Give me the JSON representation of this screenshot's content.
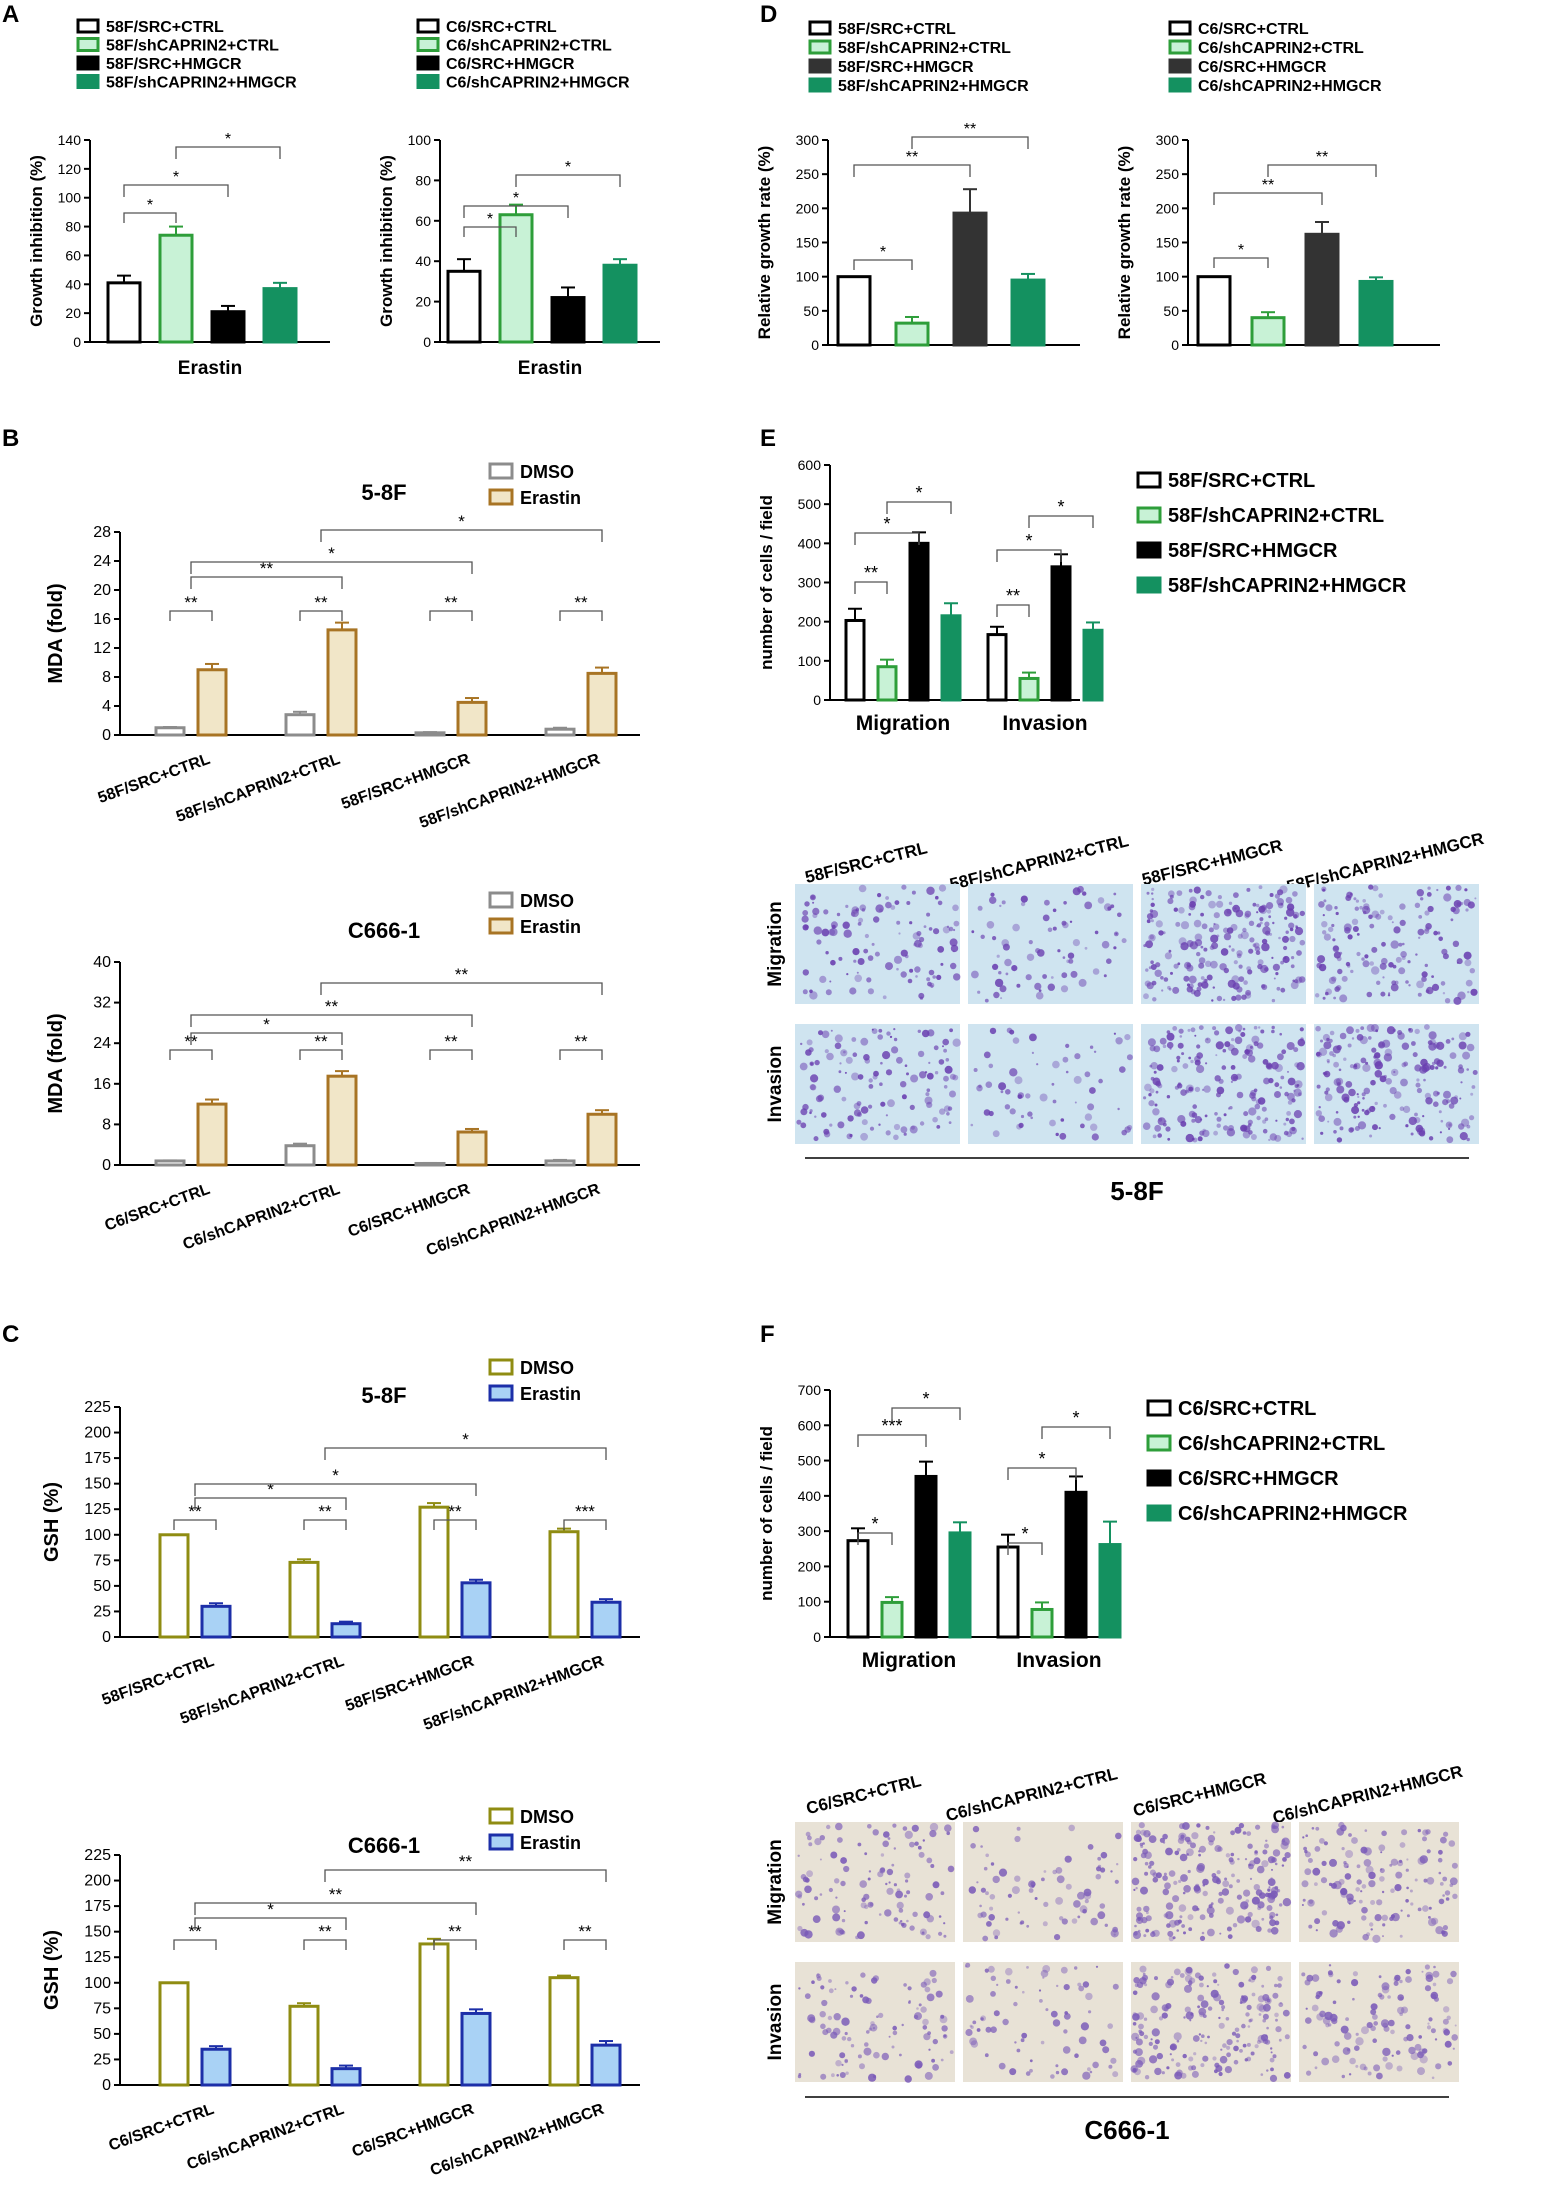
{
  "panel_letters": [
    "A",
    "B",
    "C",
    "D",
    "E",
    "F"
  ],
  "colors": {
    "white": "#ffffff",
    "light_green": "#c8f2d6",
    "green_edge": "#2e9e3a",
    "black": "#000000",
    "dark_grey": "#333333",
    "teal": "#149160",
    "grey_edge": "#8c8c8c",
    "tan_fill": "#f1e6c8",
    "tan_edge": "#a87424",
    "olive_edge": "#8f8c12",
    "blue_fill": "#a9d2f5",
    "blue_edge": "#1c2fa8"
  },
  "chart_data": [
    {
      "id": "A1",
      "type": "bar",
      "legend": [
        "58F/SRC+CTRL",
        "58F/shCAPRIN2+CTRL",
        "58F/SRC+HMGCR",
        "58F/shCAPRIN2+HMGCR"
      ],
      "categories": [
        "58F/SRC+CTRL",
        "58F/shCAPRIN2+CTRL",
        "58F/SRC+HMGCR",
        "58F/shCAPRIN2+HMGCR"
      ],
      "values": [
        41,
        74,
        21,
        37
      ],
      "errors": [
        5,
        6,
        4,
        4
      ],
      "xlabel": "Erastin",
      "ylabel": "Growth inhibition (%)",
      "ylim": [
        0,
        140
      ],
      "yticks": [
        "0",
        "20",
        "40",
        "60",
        "80",
        "100",
        "120",
        "140"
      ],
      "significance": [
        {
          "from": 0,
          "to": 1,
          "label": "*"
        },
        {
          "from": 0,
          "to": 2,
          "label": "*"
        },
        {
          "from": 1,
          "to": 3,
          "label": "*"
        }
      ]
    },
    {
      "id": "A2",
      "type": "bar",
      "legend": [
        "C6/SRC+CTRL",
        "C6/shCAPRIN2+CTRL",
        "C6/SRC+HMGCR",
        "C6/shCAPRIN2+HMGCR"
      ],
      "categories": [
        "C6/SRC+CTRL",
        "C6/shCAPRIN2+CTRL",
        "C6/SRC+HMGCR",
        "C6/shCAPRIN2+HMGCR"
      ],
      "values": [
        35,
        63,
        22,
        38
      ],
      "errors": [
        6,
        5,
        5,
        3
      ],
      "xlabel": "Erastin",
      "ylabel": "Growth inhibition (%)",
      "ylim": [
        0,
        100
      ],
      "yticks": [
        "0",
        "20",
        "40",
        "60",
        "80",
        "100"
      ],
      "significance": [
        {
          "from": 0,
          "to": 1,
          "label": "*"
        },
        {
          "from": 0,
          "to": 2,
          "label": "*"
        },
        {
          "from": 1,
          "to": 3,
          "label": "*"
        }
      ]
    },
    {
      "id": "B1",
      "type": "bar",
      "title": "5-8F",
      "legend": [
        "DMSO",
        "Erastin"
      ],
      "categories": [
        "58F/SRC+CTRL",
        "58F/shCAPRIN2+CTRL",
        "58F/SRC+HMGCR",
        "58F/shCAPRIN2+HMGCR"
      ],
      "series": [
        {
          "name": "DMSO",
          "values": [
            1.0,
            2.8,
            0.3,
            0.8
          ],
          "errors": [
            0.1,
            0.4,
            0.1,
            0.2
          ]
        },
        {
          "name": "Erastin",
          "values": [
            9.0,
            14.5,
            4.5,
            8.5
          ],
          "errors": [
            0.8,
            1.0,
            0.6,
            0.8
          ]
        }
      ],
      "ylabel": "MDA (fold)",
      "ylim": [
        0,
        28
      ],
      "yticks": [
        "0",
        "4",
        "8",
        "12",
        "16",
        "20",
        "24",
        "28"
      ],
      "significance": [
        {
          "pair": 0,
          "label": "**"
        },
        {
          "pair": 1,
          "label": "**"
        },
        {
          "pair": 2,
          "label": "**"
        },
        {
          "pair": 3,
          "label": "**"
        },
        {
          "from": 0,
          "to": 1,
          "label": "**"
        },
        {
          "from": 0,
          "to": 2,
          "label": "*"
        },
        {
          "from": 1,
          "to": 3,
          "label": "*"
        }
      ]
    },
    {
      "id": "B2",
      "type": "bar",
      "title": "C666-1",
      "legend": [
        "DMSO",
        "Erastin"
      ],
      "categories": [
        "C6/SRC+CTRL",
        "C6/shCAPRIN2+CTRL",
        "C6/SRC+HMGCR",
        "C6/shCAPRIN2+HMGCR"
      ],
      "series": [
        {
          "name": "DMSO",
          "values": [
            0.8,
            3.8,
            0.3,
            0.8
          ],
          "errors": [
            0.1,
            0.4,
            0.1,
            0.2
          ]
        },
        {
          "name": "Erastin",
          "values": [
            12,
            17.5,
            6.5,
            10
          ],
          "errors": [
            0.9,
            1.0,
            0.6,
            0.8
          ]
        }
      ],
      "ylabel": "MDA (fold)",
      "ylim": [
        0,
        40
      ],
      "yticks": [
        "0",
        "8",
        "16",
        "24",
        "32",
        "40"
      ],
      "significance": [
        {
          "pair": 0,
          "label": "**"
        },
        {
          "pair": 1,
          "label": "**"
        },
        {
          "pair": 2,
          "label": "**"
        },
        {
          "pair": 3,
          "label": "**"
        },
        {
          "from": 0,
          "to": 1,
          "label": "*"
        },
        {
          "from": 0,
          "to": 2,
          "label": "**"
        },
        {
          "from": 1,
          "to": 3,
          "label": "**"
        }
      ]
    },
    {
      "id": "C1",
      "type": "bar",
      "title": "5-8F",
      "legend": [
        "DMSO",
        "Erastin"
      ],
      "categories": [
        "58F/SRC+CTRL",
        "58F/shCAPRIN2+CTRL",
        "58F/SRC+HMGCR",
        "58F/shCAPRIN2+HMGCR"
      ],
      "series": [
        {
          "name": "DMSO",
          "values": [
            100,
            73,
            127,
            103
          ],
          "errors": [
            0,
            3,
            4,
            3
          ]
        },
        {
          "name": "Erastin",
          "values": [
            30,
            13,
            53,
            34
          ],
          "errors": [
            3,
            2,
            3,
            3
          ]
        }
      ],
      "ylabel": "GSH (%)",
      "ylim": [
        0,
        225
      ],
      "yticks": [
        "0",
        "25",
        "50",
        "75",
        "100",
        "125",
        "150",
        "175",
        "200",
        "225"
      ],
      "significance": [
        {
          "pair": 0,
          "label": "**"
        },
        {
          "pair": 1,
          "label": "**"
        },
        {
          "pair": 2,
          "label": "**"
        },
        {
          "pair": 3,
          "label": "***"
        },
        {
          "from": 0,
          "to": 1,
          "label": "*"
        },
        {
          "from": 0,
          "to": 2,
          "label": "*"
        },
        {
          "from": 1,
          "to": 3,
          "label": "*"
        }
      ]
    },
    {
      "id": "C2",
      "type": "bar",
      "title": "C666-1",
      "legend": [
        "DMSO",
        "Erastin"
      ],
      "categories": [
        "C6/SRC+CTRL",
        "C6/shCAPRIN2+CTRL",
        "C6/SRC+HMGCR",
        "C6/shCAPRIN2+HMGCR"
      ],
      "series": [
        {
          "name": "DMSO",
          "values": [
            100,
            77,
            138,
            105
          ],
          "errors": [
            0,
            3,
            5,
            2
          ]
        },
        {
          "name": "Erastin",
          "values": [
            35,
            16,
            70,
            39
          ],
          "errors": [
            3,
            3,
            4,
            4
          ]
        }
      ],
      "ylabel": "GSH (%)",
      "ylim": [
        0,
        225
      ],
      "yticks": [
        "0",
        "25",
        "50",
        "75",
        "100",
        "125",
        "150",
        "175",
        "200",
        "225"
      ],
      "significance": [
        {
          "pair": 0,
          "label": "**"
        },
        {
          "pair": 1,
          "label": "**"
        },
        {
          "pair": 2,
          "label": "**"
        },
        {
          "pair": 3,
          "label": "**"
        },
        {
          "from": 0,
          "to": 1,
          "label": "*"
        },
        {
          "from": 0,
          "to": 2,
          "label": "**"
        },
        {
          "from": 1,
          "to": 3,
          "label": "**"
        }
      ]
    },
    {
      "id": "D1",
      "type": "bar",
      "legend": [
        "58F/SRC+CTRL",
        "58F/shCAPRIN2+CTRL",
        "58F/SRC+HMGCR",
        "58F/shCAPRIN2+HMGCR"
      ],
      "categories": [
        "58F/SRC+CTRL",
        "58F/shCAPRIN2+CTRL",
        "58F/SRC+HMGCR",
        "58F/shCAPRIN2+HMGCR"
      ],
      "values": [
        100,
        32,
        193,
        95
      ],
      "errors": [
        0,
        9,
        35,
        9
      ],
      "ylabel": "Relative growth rate (%)",
      "ylim": [
        0,
        300
      ],
      "yticks": [
        "0",
        "50",
        "100",
        "150",
        "200",
        "250",
        "300"
      ],
      "significance": [
        {
          "from": 0,
          "to": 1,
          "label": "*"
        },
        {
          "from": 0,
          "to": 2,
          "label": "**"
        },
        {
          "from": 1,
          "to": 3,
          "label": "**"
        }
      ]
    },
    {
      "id": "D2",
      "type": "bar",
      "legend": [
        "C6/SRC+CTRL",
        "C6/shCAPRIN2+CTRL",
        "C6/SRC+HMGCR",
        "C6/shCAPRIN2+HMGCR"
      ],
      "categories": [
        "C6/SRC+CTRL",
        "C6/shCAPRIN2+CTRL",
        "C6/SRC+HMGCR",
        "C6/shCAPRIN2+HMGCR"
      ],
      "values": [
        100,
        40,
        162,
        93
      ],
      "errors": [
        0,
        8,
        18,
        6
      ],
      "ylabel": "Relative growth rate (%)",
      "ylim": [
        0,
        300
      ],
      "yticks": [
        "0",
        "50",
        "100",
        "150",
        "200",
        "250",
        "300"
      ],
      "significance": [
        {
          "from": 0,
          "to": 1,
          "label": "*"
        },
        {
          "from": 0,
          "to": 2,
          "label": "**"
        },
        {
          "from": 1,
          "to": 3,
          "label": "**"
        }
      ]
    },
    {
      "id": "E",
      "type": "bar",
      "legend": [
        "58F/SRC+CTRL",
        "58F/shCAPRIN2+CTRL",
        "58F/SRC+HMGCR",
        "58F/shCAPRIN2+HMGCR"
      ],
      "categories": [
        "Migration",
        "Invasion"
      ],
      "series": [
        {
          "name": "58F/SRC+CTRL",
          "values": [
            203,
            167
          ],
          "errors": [
            30,
            20
          ]
        },
        {
          "name": "58F/shCAPRIN2+CTRL",
          "values": [
            85,
            55
          ],
          "errors": [
            18,
            15
          ]
        },
        {
          "name": "58F/SRC+HMGCR",
          "values": [
            400,
            340
          ],
          "errors": [
            28,
            32
          ]
        },
        {
          "name": "58F/shCAPRIN2+HMGCR",
          "values": [
            215,
            178
          ],
          "errors": [
            32,
            20
          ]
        }
      ],
      "ylabel": "number of cells / field",
      "ylim": [
        0,
        600
      ],
      "yticks": [
        "0",
        "100",
        "200",
        "300",
        "400",
        "500",
        "600"
      ],
      "significance": [
        {
          "group": 0,
          "from": 0,
          "to": 1,
          "label": "**"
        },
        {
          "group": 0,
          "from": 0,
          "to": 2,
          "label": "*"
        },
        {
          "group": 0,
          "from": 1,
          "to": 3,
          "label": "*"
        },
        {
          "group": 1,
          "from": 0,
          "to": 1,
          "label": "**"
        },
        {
          "group": 1,
          "from": 0,
          "to": 2,
          "label": "*"
        },
        {
          "group": 1,
          "from": 1,
          "to": 3,
          "label": "*"
        }
      ]
    },
    {
      "id": "F",
      "type": "bar",
      "legend": [
        "C6/SRC+CTRL",
        "C6/shCAPRIN2+CTRL",
        "C6/SRC+HMGCR",
        "C6/shCAPRIN2+HMGCR"
      ],
      "categories": [
        "Migration",
        "Invasion"
      ],
      "series": [
        {
          "name": "C6/SRC+CTRL",
          "values": [
            273,
            255
          ],
          "errors": [
            35,
            35
          ]
        },
        {
          "name": "C6/shCAPRIN2+CTRL",
          "values": [
            98,
            78
          ],
          "errors": [
            15,
            20
          ]
        },
        {
          "name": "C6/SRC+HMGCR",
          "values": [
            455,
            410
          ],
          "errors": [
            42,
            45
          ]
        },
        {
          "name": "C6/shCAPRIN2+HMGCR",
          "values": [
            295,
            262
          ],
          "errors": [
            30,
            65
          ]
        }
      ],
      "ylabel": "number of cells / field",
      "ylim": [
        0,
        700
      ],
      "yticks": [
        "0",
        "100",
        "200",
        "300",
        "400",
        "500",
        "600",
        "700"
      ],
      "significance": [
        {
          "group": 0,
          "from": 0,
          "to": 1,
          "label": "*"
        },
        {
          "group": 0,
          "from": 0,
          "to": 2,
          "label": "***"
        },
        {
          "group": 0,
          "from": 1,
          "to": 3,
          "label": "*"
        },
        {
          "group": 1,
          "from": 0,
          "to": 1,
          "label": "*"
        },
        {
          "group": 1,
          "from": 0,
          "to": 2,
          "label": "*"
        },
        {
          "group": 1,
          "from": 1,
          "to": 3,
          "label": "*"
        }
      ]
    }
  ],
  "micrographs": [
    {
      "id": "E-img",
      "columns": [
        "58F/SRC+CTRL",
        "58F/shCAPRIN2+CTRL",
        "58F/SRC+HMGCR",
        "58F/shCAPRIN2+HMGCR"
      ],
      "rows": [
        "Migration",
        "Invasion"
      ],
      "cell_line": "5-8F",
      "background": "#cfe4f0",
      "stain": "#6a3fb0",
      "densities": [
        [
          0.45,
          0.3,
          0.85,
          0.6
        ],
        [
          0.5,
          0.25,
          0.8,
          0.75
        ]
      ]
    },
    {
      "id": "F-img",
      "columns": [
        "C6/SRC+CTRL",
        "C6/shCAPRIN2+CTRL",
        "C6/SRC+HMGCR",
        "C6/shCAPRIN2+HMGCR"
      ],
      "rows": [
        "Migration",
        "Invasion"
      ],
      "cell_line": "C666-1",
      "background": "#e8e2d6",
      "stain": "#7a5ab8",
      "densities": [
        [
          0.45,
          0.3,
          0.85,
          0.55
        ],
        [
          0.4,
          0.3,
          0.75,
          0.5
        ]
      ]
    }
  ]
}
